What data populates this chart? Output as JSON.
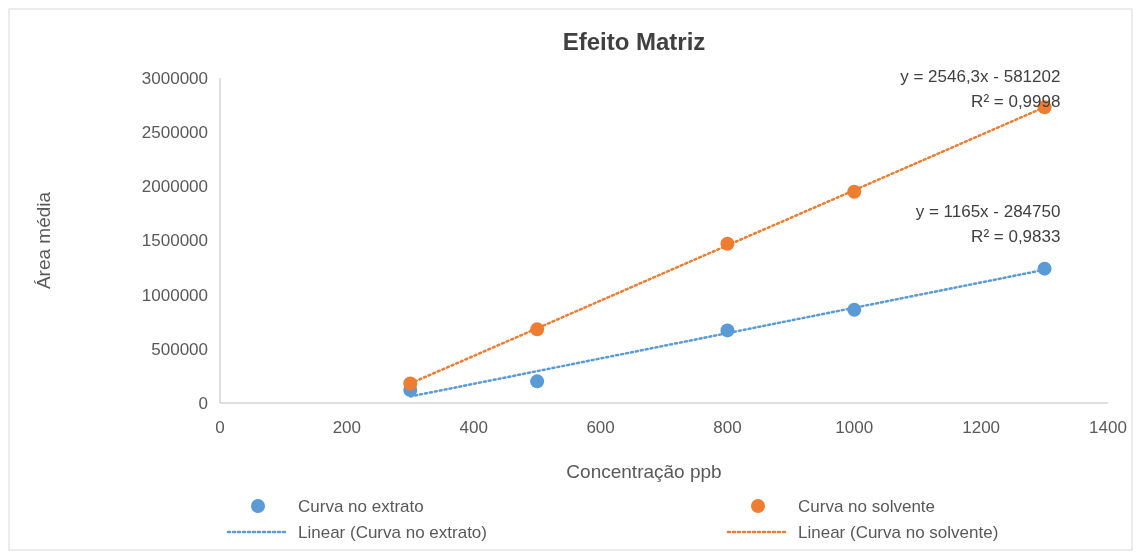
{
  "chart_data": {
    "type": "scatter",
    "title": "Efeito Matriz",
    "xlabel": "Concentração ppb",
    "ylabel": "Área média",
    "xlim": [
      0,
      1400
    ],
    "xticks": [
      0,
      200,
      400,
      600,
      800,
      1000,
      1200,
      1400
    ],
    "ylim": [
      0,
      3000000
    ],
    "yticks": [
      0,
      500000,
      1000000,
      1500000,
      2000000,
      2500000,
      3000000
    ],
    "grid": false,
    "legend": "bottom",
    "series": [
      {
        "name": "Curva no extrato",
        "color": "#5b9bd5",
        "marker": "circle",
        "x": [
          300,
          500,
          800,
          1000,
          1300
        ],
        "values": [
          120000,
          200000,
          670000,
          860000,
          1240000
        ]
      },
      {
        "name": "Curva no solvente",
        "color": "#ed7d31",
        "marker": "circle",
        "x": [
          300,
          500,
          800,
          1000,
          1300
        ],
        "values": [
          180000,
          680000,
          1470000,
          1950000,
          2730000
        ]
      },
      {
        "name": "Linear (Curva no extrato)",
        "type": "line",
        "color": "#5b9bd5",
        "marker": "none",
        "line_style": "dotted",
        "x": [
          300,
          1300
        ],
        "values": [
          60000,
          1230000
        ]
      },
      {
        "name": "Linear (Curva no solvente)",
        "type": "line",
        "color": "#ed7d31",
        "marker": "none",
        "line_style": "dotted",
        "x": [
          300,
          1300
        ],
        "values": [
          180000,
          2730000
        ]
      }
    ],
    "annotations": [
      "y = 2546,3x - 581202",
      "R² = 0,9998",
      "y = 1165x - 284750",
      "R² = 0,9833"
    ]
  }
}
